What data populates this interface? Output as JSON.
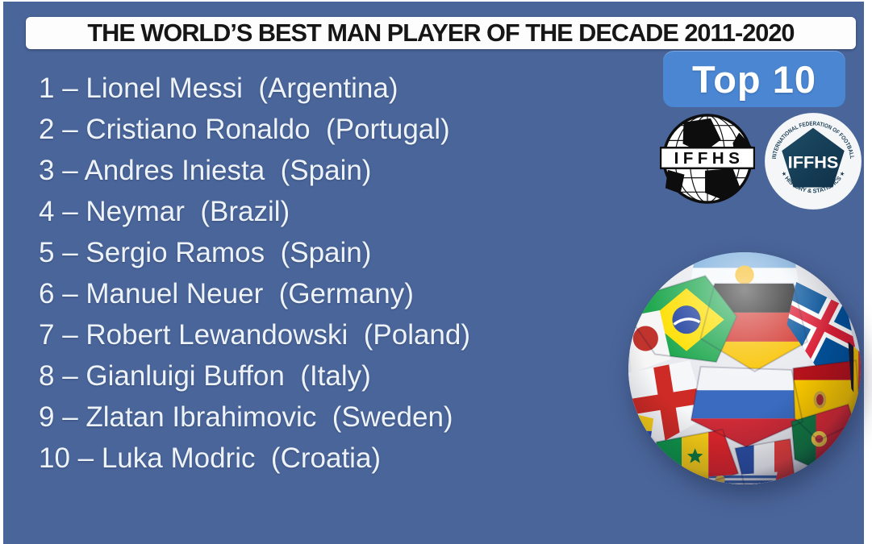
{
  "colors": {
    "background": "#4a659a",
    "title_bar": "#fdfdfd",
    "title_text": "#161616",
    "badge": "#4a86d2",
    "badge_text": "#ffffff",
    "list_text": "#eef3f8",
    "federation_navy": "#14384e"
  },
  "title": {
    "text": "THE WORLD’S BEST MAN PLAYER OF THE DECADE 2011-2020"
  },
  "badge": {
    "label": "Top 10"
  },
  "ranking": {
    "line_format": "{rank} – {name}  ({country})",
    "players": [
      {
        "rank": "1",
        "name": "Lionel Messi",
        "country": "Argentina"
      },
      {
        "rank": "2",
        "name": "Cristiano Ronaldo",
        "country": "Portugal"
      },
      {
        "rank": "3",
        "name": "Andres Iniesta",
        "country": "Spain"
      },
      {
        "rank": "4",
        "name": "Neymar",
        "country": "Brazil"
      },
      {
        "rank": "5",
        "name": "Sergio Ramos",
        "country": "Spain"
      },
      {
        "rank": "6",
        "name": "Manuel Neuer",
        "country": "Germany"
      },
      {
        "rank": "7",
        "name": "Robert Lewandowski",
        "country": "Poland"
      },
      {
        "rank": "8",
        "name": "Gianluigi Buffon",
        "country": "Italy"
      },
      {
        "rank": "9",
        "name": "Zlatan Ibrahimovic",
        "country": "Sweden"
      },
      {
        "rank": "10",
        "name": "Luka Modric",
        "country": "Croatia"
      }
    ]
  },
  "logos": {
    "globe": {
      "text": "IFFHS"
    },
    "federation": {
      "center_text": "IFFHS",
      "arc_top": "INTERNATIONAL FEDERATION OF FOOTBALL",
      "arc_bottom": "★ HISTORY & STATISTICS ★"
    }
  },
  "ball": {
    "flags": [
      "Argentina",
      "Germany",
      "Brazil",
      "Iceland",
      "Japan",
      "England",
      "Russia",
      "Spain",
      "Colombia",
      "Senegal",
      "France",
      "Portugal",
      "Uruguay",
      "Belgium"
    ]
  }
}
